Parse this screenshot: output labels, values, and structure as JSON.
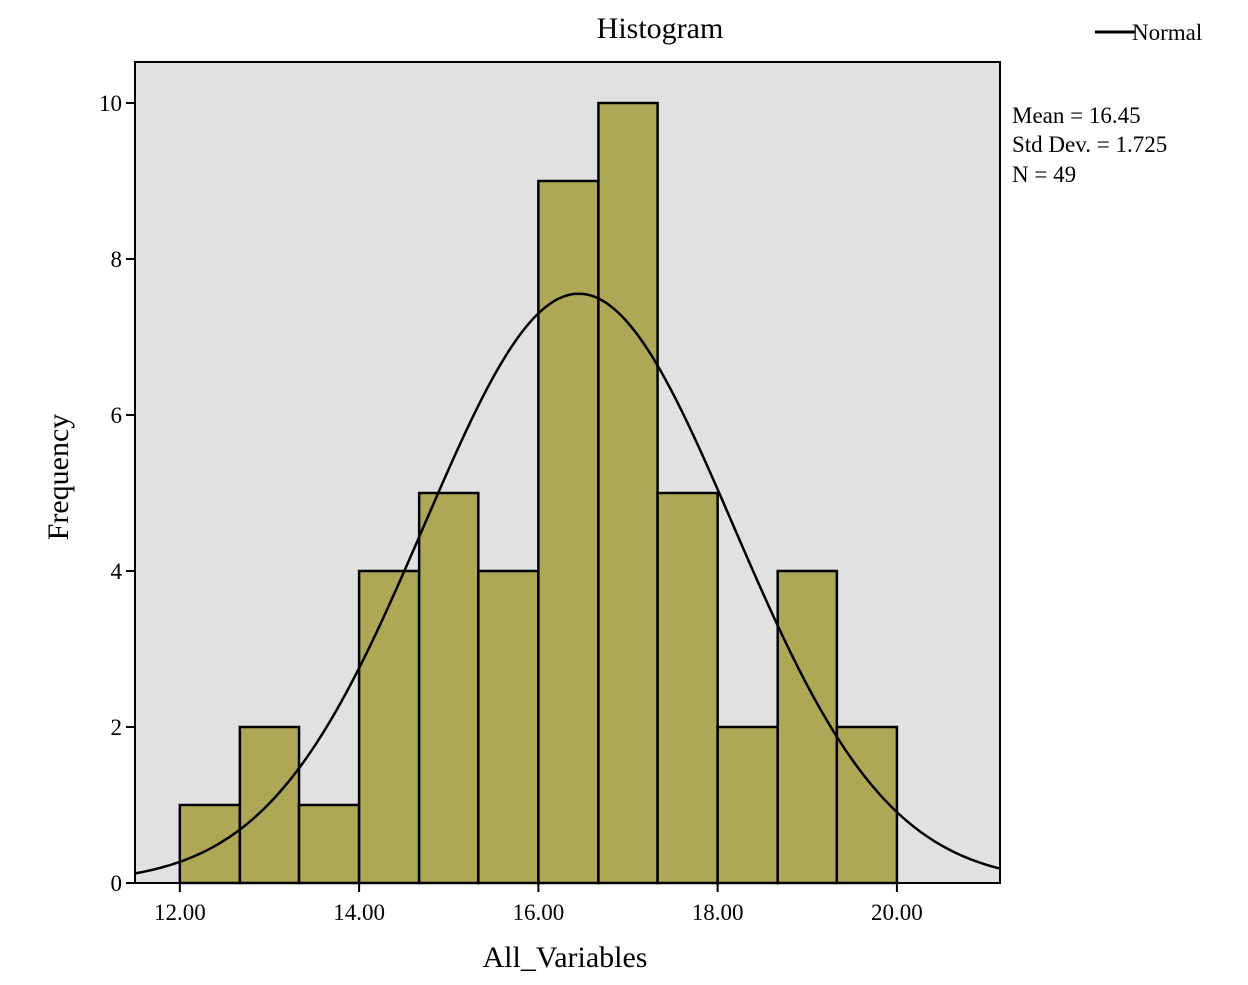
{
  "chart_data": {
    "type": "bar",
    "title": "Histogram",
    "xlabel": "All_Variables",
    "ylabel": "Frequency",
    "xlim": [
      11.5,
      21.15
    ],
    "ylim": [
      0,
      10.5
    ],
    "x_ticks": [
      "12.00",
      "14.00",
      "16.00",
      "18.00",
      "20.00"
    ],
    "y_ticks": [
      "0",
      "2",
      "4",
      "6",
      "8",
      "10"
    ],
    "bins": [
      {
        "start": 12.0,
        "end": 12.67,
        "count": 1
      },
      {
        "start": 12.67,
        "end": 13.33,
        "count": 2
      },
      {
        "start": 13.33,
        "end": 14.0,
        "count": 1
      },
      {
        "start": 14.0,
        "end": 14.67,
        "count": 4
      },
      {
        "start": 14.67,
        "end": 15.33,
        "count": 5
      },
      {
        "start": 15.33,
        "end": 16.0,
        "count": 4
      },
      {
        "start": 16.0,
        "end": 16.67,
        "count": 9
      },
      {
        "start": 16.67,
        "end": 17.33,
        "count": 10
      },
      {
        "start": 17.33,
        "end": 18.0,
        "count": 5
      },
      {
        "start": 18.0,
        "end": 18.67,
        "count": 2
      },
      {
        "start": 18.67,
        "end": 19.33,
        "count": 4
      },
      {
        "start": 19.33,
        "end": 20.0,
        "count": 2
      }
    ],
    "normal_curve": {
      "mean": 16.45,
      "std": 1.725,
      "n": 49,
      "bin_width": 0.6667
    },
    "stats": {
      "mean_text": "Mean = 16.45",
      "std_text": "Std Dev. = 1.725",
      "n_text": "N = 49"
    },
    "legend": [
      {
        "name": "Normal",
        "type": "line"
      }
    ],
    "legend_position": "top-right",
    "grid": false,
    "colors": {
      "bar_fill": "#aea755",
      "bar_stroke": "#000000",
      "plot_background": "#e1e1e1",
      "curve": "#000000"
    }
  }
}
